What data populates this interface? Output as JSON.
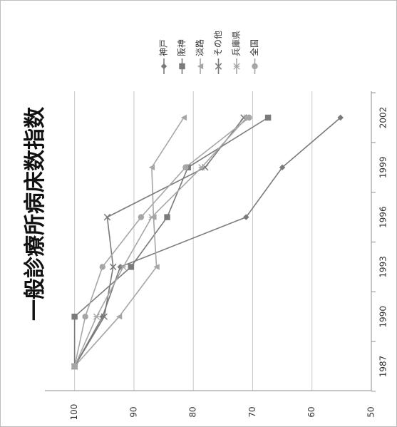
{
  "chart_data": {
    "type": "line",
    "title": "一般診療所病床数指数",
    "xlabel": "",
    "ylabel": "",
    "x": [
      1987,
      1990,
      1993,
      1996,
      1999,
      2002
    ],
    "x_ticks": [
      "1987",
      "1990",
      "1993",
      "1996",
      "1999",
      "2002"
    ],
    "y_ticks": [
      "100",
      "90",
      "80",
      "70",
      "60",
      "50"
    ],
    "ylim": [
      50,
      105
    ],
    "grid": true,
    "legend_position": "top",
    "orientation": "rotated 90° counter-clockwise",
    "series": [
      {
        "name": "神戸",
        "marker": "diamond",
        "color": "#7a7a7a",
        "values": [
          100,
          95.3,
          92.3,
          71.1,
          65.0,
          55.2
        ]
      },
      {
        "name": "阪神",
        "marker": "square",
        "color": "#7a7a7a",
        "values": [
          100,
          100,
          90.5,
          84.4,
          80.9,
          67.4
        ]
      },
      {
        "name": "淡路",
        "marker": "triangle",
        "color": "#a6a6a6",
        "values": [
          100,
          92.5,
          86.2,
          86.7,
          87.0,
          81.6
        ]
      },
      {
        "name": "その他",
        "marker": "x",
        "color": "#7a7a7a",
        "values": [
          100,
          95.0,
          93.5,
          94.5,
          78.0,
          71.5
        ]
      },
      {
        "name": "兵庫県",
        "marker": "star",
        "color": "#a6a6a6",
        "values": [
          100,
          96.3,
          91.8,
          87.0,
          78.6,
          71.0
        ]
      },
      {
        "name": "全国",
        "marker": "circle",
        "color": "#a6a6a6",
        "values": [
          100,
          98.2,
          95.3,
          88.8,
          81.3,
          70.6
        ]
      }
    ]
  }
}
